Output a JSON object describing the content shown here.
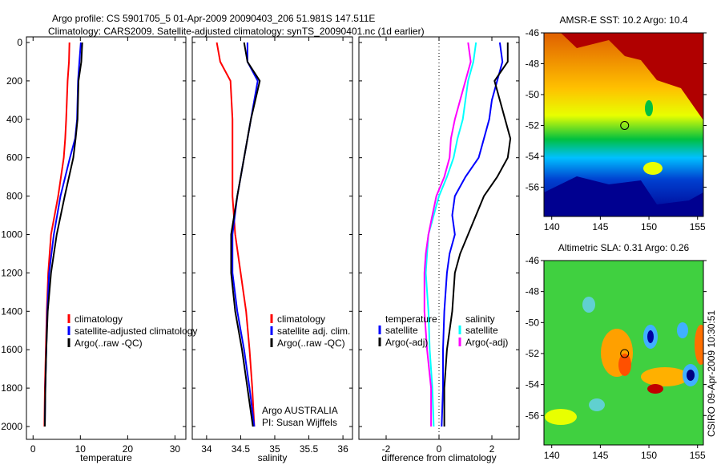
{
  "title_line1": "Argo profile: CS 5901705_5 01-Apr-2009 20090403_206 51.981S 147.511E",
  "title_line2": "Climatology: CARS2009. Satellite-adjusted climatology: synTS_20090401.nc (1d earlier)",
  "side_label": "CSIRO 09-Apr-2009 10:30:51",
  "colors": {
    "climatology": "#ff0000",
    "satellite": "#0000ff",
    "argo": "#000000",
    "sal_satellite": "#00ffff",
    "sal_argo": "#ff00ff"
  },
  "chart_data": [
    {
      "type": "line",
      "id": "temperature",
      "xlabel": "temperature",
      "xlim": [
        -1.4,
        32.3
      ],
      "ylim": [
        0,
        2067
      ],
      "y_reversed": true,
      "xticks": [
        0,
        10,
        20,
        30
      ],
      "xtick_labels": [
        "0",
        "10",
        "20",
        "30"
      ],
      "yticks": [
        0,
        200,
        400,
        600,
        800,
        1000,
        1200,
        1400,
        1600,
        1800,
        2000
      ],
      "ytick_labels": [
        "0",
        "200",
        "400",
        "600",
        "800",
        "1000",
        "1200",
        "1400",
        "1600",
        "1800",
        "2000"
      ],
      "depth": [
        0,
        100,
        200,
        400,
        500,
        600,
        800,
        1000,
        1200,
        1400,
        1600,
        1800,
        2000
      ],
      "legend": [
        "climatology",
        "satellite-adjusted climatology",
        "Argo(..raw -QC)"
      ],
      "series": [
        {
          "name": "climatology",
          "color": "#ff0000",
          "values": [
            7.7,
            7.6,
            7.3,
            7.0,
            6.8,
            6.5,
            5.3,
            3.8,
            3.2,
            2.9,
            2.7,
            2.5,
            2.4
          ]
        },
        {
          "name": "satellite-adjusted climatology",
          "color": "#0000ff",
          "values": [
            10.1,
            9.8,
            9.5,
            9.3,
            8.9,
            7.8,
            5.8,
            4.4,
            3.4,
            3.0,
            2.8,
            2.6,
            2.5
          ]
        },
        {
          "name": "Argo(..raw -QC)",
          "color": "#000000",
          "values": [
            10.4,
            10.2,
            9.6,
            9.4,
            9.0,
            8.5,
            6.7,
            5.0,
            3.8,
            3.1,
            2.8,
            2.6,
            2.5
          ]
        }
      ]
    },
    {
      "type": "line",
      "id": "salinity",
      "xlabel": "salinity",
      "xlim": [
        33.79,
        36.14
      ],
      "ylim": [
        0,
        2067
      ],
      "y_reversed": true,
      "xticks": [
        34,
        34.5,
        35,
        35.5,
        36
      ],
      "xtick_labels": [
        "34",
        "34.5",
        "35",
        "35.5",
        "36"
      ],
      "depth": [
        0,
        100,
        200,
        400,
        600,
        800,
        1000,
        1200,
        1400,
        1600,
        1800,
        2000
      ],
      "legend": [
        "climatology",
        "satellite adj. clim.",
        "Argo(..raw -QC)"
      ],
      "annotation": [
        "Argo AUSTRALIA",
        "PI: Susan Wijffels"
      ],
      "series": [
        {
          "name": "climatology",
          "color": "#ff0000",
          "values": [
            34.15,
            34.2,
            34.35,
            34.38,
            34.38,
            34.38,
            34.42,
            34.5,
            34.58,
            34.63,
            34.67,
            34.7
          ]
        },
        {
          "name": "satellite adj. clim.",
          "color": "#0000ff",
          "values": [
            34.6,
            34.6,
            34.75,
            34.65,
            34.55,
            34.45,
            34.38,
            34.38,
            34.45,
            34.55,
            34.63,
            34.7
          ]
        },
        {
          "name": "Argo(..raw -QC)",
          "color": "#000000",
          "values": [
            34.55,
            34.6,
            34.78,
            34.65,
            34.55,
            34.45,
            34.36,
            34.36,
            34.42,
            34.52,
            34.6,
            34.68
          ]
        }
      ]
    },
    {
      "type": "line",
      "id": "difference",
      "xlabel": "difference from climatology",
      "xlim": [
        -3.03,
        3.03
      ],
      "ylim": [
        0,
        2067
      ],
      "y_reversed": true,
      "xticks": [
        -2,
        0,
        2
      ],
      "xtick_labels": [
        "-2",
        "0",
        "2"
      ],
      "zero_line": "dotted",
      "depth": [
        0,
        100,
        200,
        300,
        400,
        500,
        600,
        700,
        800,
        900,
        1000,
        1100,
        1200,
        1400,
        1600,
        1800,
        2000
      ],
      "legend_headers": [
        "temperature",
        "salinity"
      ],
      "legend": [
        "satellite",
        "Argo(-adj)",
        "satellite",
        "Argo(-adj)"
      ],
      "series": [
        {
          "name": "temperature satellite",
          "color": "#0000ff",
          "values": [
            2.3,
            2.4,
            2.2,
            2.0,
            1.9,
            1.7,
            1.5,
            1.0,
            0.6,
            0.5,
            0.6,
            0.4,
            0.3,
            0.2,
            0.15,
            0.15,
            0.1
          ]
        },
        {
          "name": "temperature Argo(-adj)",
          "color": "#000000",
          "values": [
            2.6,
            2.6,
            2.1,
            2.3,
            2.5,
            2.7,
            2.6,
            2.2,
            1.7,
            1.4,
            1.1,
            0.8,
            0.6,
            0.5,
            0.3,
            0.2,
            0.2
          ]
        },
        {
          "name": "salinity satellite",
          "color": "#00ffff",
          "values": [
            1.4,
            1.3,
            1.1,
            1.0,
            0.9,
            0.7,
            0.55,
            0.3,
            0.0,
            -0.2,
            -0.4,
            -0.45,
            -0.5,
            -0.4,
            -0.35,
            -0.25,
            -0.2
          ]
        },
        {
          "name": "salinity Argo(-adj)",
          "color": "#ff00ff",
          "values": [
            1.1,
            1.2,
            1.0,
            0.8,
            0.6,
            0.45,
            0.4,
            0.2,
            -0.1,
            -0.25,
            -0.4,
            -0.5,
            -0.55,
            -0.55,
            -0.45,
            -0.3,
            -0.3
          ]
        }
      ]
    },
    {
      "type": "heatmap",
      "id": "sst-map",
      "title": "AMSR-E SST: 10.2 Argo: 10.4",
      "xlim": [
        139.2,
        155.6
      ],
      "ylim": [
        -57.9,
        -46
      ],
      "xticks": [
        140,
        145,
        150,
        155
      ],
      "yticks": [
        -46,
        -48,
        -50,
        -52,
        -54,
        -56
      ],
      "marker": {
        "lon": 147.5,
        "lat": -52
      }
    },
    {
      "type": "heatmap",
      "id": "sla-map",
      "title": "Altimetric SLA: 0.31 Argo: 0.26",
      "xlim": [
        139.2,
        155.6
      ],
      "ylim": [
        -57.9,
        -46
      ],
      "xticks": [
        140,
        145,
        150,
        155
      ],
      "yticks": [
        -46,
        -48,
        -50,
        -52,
        -54,
        -56
      ],
      "marker": {
        "lon": 147.5,
        "lat": -52
      }
    }
  ]
}
